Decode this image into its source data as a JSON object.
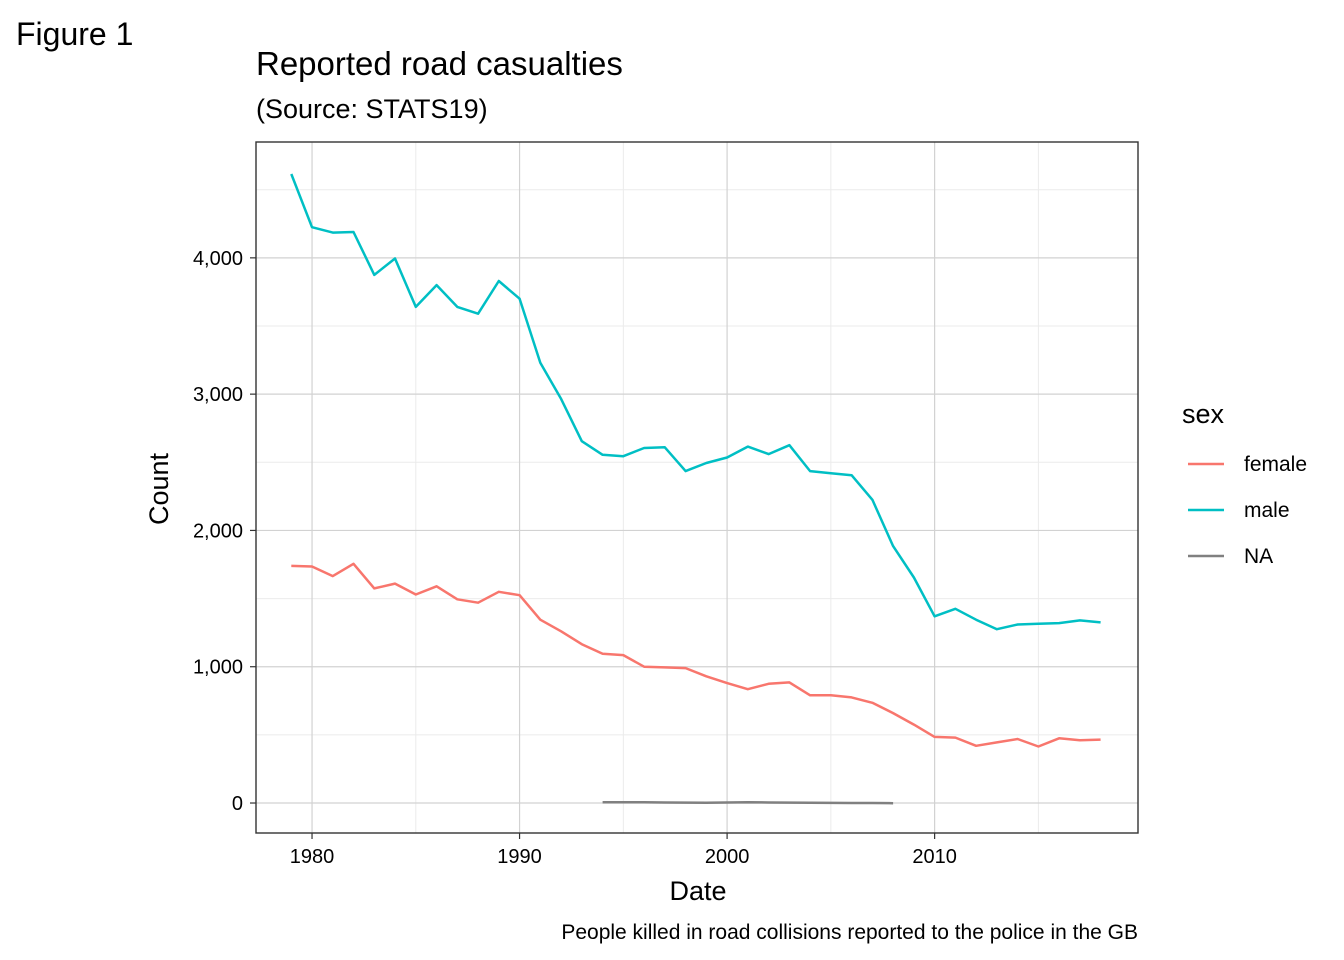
{
  "figure_label": "Figure 1",
  "chart_data": {
    "type": "line",
    "title": "Reported road casualties",
    "subtitle": "(Source: STATS19)",
    "xlabel": "Date",
    "ylabel": "Count",
    "caption": "People killed in road collisions reported to the police in the GB",
    "xlim": [
      1977.3,
      2019.8
    ],
    "ylim": [
      -220,
      4850
    ],
    "x_ticks": [
      1980,
      1990,
      2000,
      2010
    ],
    "x_tick_labels": [
      "1980",
      "1990",
      "2000",
      "2010"
    ],
    "y_ticks": [
      0,
      1000,
      2000,
      3000,
      4000
    ],
    "y_tick_labels": [
      "0",
      "1,000",
      "2,000",
      "3,000",
      "4,000"
    ],
    "grid": true,
    "legend": {
      "title": "sex",
      "position": "right"
    },
    "series": [
      {
        "name": "female",
        "color": "#F8766D",
        "x": [
          1979,
          1980,
          1981,
          1982,
          1983,
          1984,
          1985,
          1986,
          1987,
          1988,
          1989,
          1990,
          1991,
          1992,
          1993,
          1994,
          1995,
          1996,
          1997,
          1998,
          1999,
          2000,
          2001,
          2002,
          2003,
          2004,
          2005,
          2006,
          2007,
          2008,
          2009,
          2010,
          2011,
          2012,
          2013,
          2014,
          2015,
          2016,
          2017,
          2018
        ],
        "values": [
          1740,
          1735,
          1665,
          1755,
          1575,
          1610,
          1530,
          1590,
          1495,
          1470,
          1550,
          1525,
          1345,
          1260,
          1165,
          1095,
          1085,
          1000,
          995,
          990,
          930,
          880,
          835,
          875,
          885,
          790,
          790,
          775,
          735,
          660,
          575,
          485,
          480,
          420,
          445,
          470,
          415,
          475,
          460,
          465
        ]
      },
      {
        "name": "male",
        "color": "#00BFC4",
        "x": [
          1979,
          1980,
          1981,
          1982,
          1983,
          1984,
          1985,
          1986,
          1987,
          1988,
          1989,
          1990,
          1991,
          1992,
          1993,
          1994,
          1995,
          1996,
          1997,
          1998,
          1999,
          2000,
          2001,
          2002,
          2003,
          2004,
          2005,
          2006,
          2007,
          2008,
          2009,
          2010,
          2011,
          2012,
          2013,
          2014,
          2015,
          2016,
          2017,
          2018
        ],
        "values": [
          4615,
          4225,
          4185,
          4190,
          3875,
          3995,
          3640,
          3800,
          3640,
          3590,
          3830,
          3700,
          3230,
          2965,
          2655,
          2555,
          2545,
          2605,
          2610,
          2435,
          2495,
          2535,
          2615,
          2560,
          2625,
          2435,
          2420,
          2405,
          2225,
          1885,
          1655,
          1370,
          1425,
          1345,
          1275,
          1310,
          1315,
          1320,
          1340,
          1325
        ]
      },
      {
        "name": "NA",
        "color": "#808080",
        "x": [
          1994,
          1995,
          1996,
          1997,
          1998,
          1999,
          2000,
          2001,
          2002,
          2003,
          2004,
          2005,
          2006,
          2007,
          2008
        ],
        "values": [
          6,
          6,
          5,
          4,
          3,
          2,
          4,
          6,
          4,
          3,
          2,
          1,
          0,
          0,
          -1
        ]
      }
    ]
  }
}
